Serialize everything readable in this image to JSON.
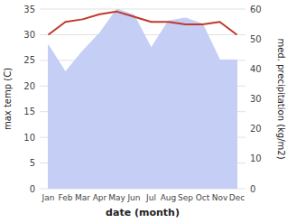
{
  "chart_data": {
    "type": "line",
    "categories": [
      "Jan",
      "Feb",
      "Mar",
      "Apr",
      "May",
      "Jun",
      "Jul",
      "Aug",
      "Sep",
      "Oct",
      "Nov",
      "Dec"
    ],
    "xlabel": "date (month)",
    "ylabel": "max temp (C)",
    "y2label": "med. precipitation (kg/m2)",
    "series": [
      {
        "type": "line",
        "color": "#c0392b",
        "values": [
          30.0,
          32.5,
          33.0,
          34.0,
          34.5,
          33.5,
          32.5,
          32.5,
          32.0,
          32.0,
          32.5,
          30.0
        ]
      },
      {
        "type": "area",
        "axis": "y2",
        "color": "#c5cef5",
        "values": [
          48,
          39,
          46,
          52,
          60,
          58,
          47,
          56,
          57,
          55,
          43,
          43
        ]
      }
    ],
    "ylim": [
      0,
      35
    ],
    "yticks": [
      0,
      5,
      10,
      15,
      20,
      25,
      30,
      35
    ],
    "y2lim": [
      0,
      60
    ],
    "y2ticks": [
      0,
      10,
      20,
      30,
      40,
      50,
      60
    ],
    "grid": true
  }
}
